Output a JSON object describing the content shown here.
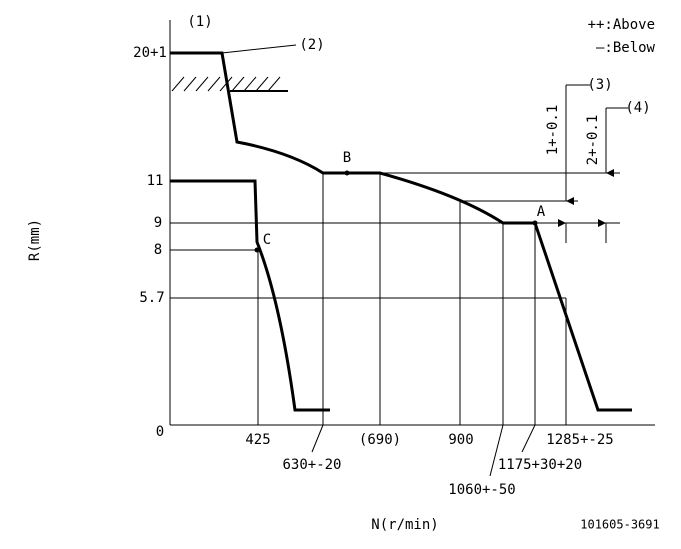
{
  "callouts": [
    "(1)",
    "(2)",
    "(3)",
    "(4)"
  ],
  "legend": {
    "above": "++:Above",
    "below": "—:Below"
  },
  "axis": {
    "y_label": "R(mm)",
    "x_label": "N(r/min)"
  },
  "y_ticks": [
    "20+1",
    "11",
    "9",
    "8",
    "5.7",
    "0"
  ],
  "x_ticks": [
    "425",
    "630+-20",
    "(690)",
    "900",
    "1060+-50",
    "1175+30+20",
    "1285+-25"
  ],
  "dimensions": [
    "1+-0.1",
    "2+-0.1"
  ],
  "points": [
    "A",
    "B",
    "C"
  ],
  "drawing_number": "101605-3691"
}
